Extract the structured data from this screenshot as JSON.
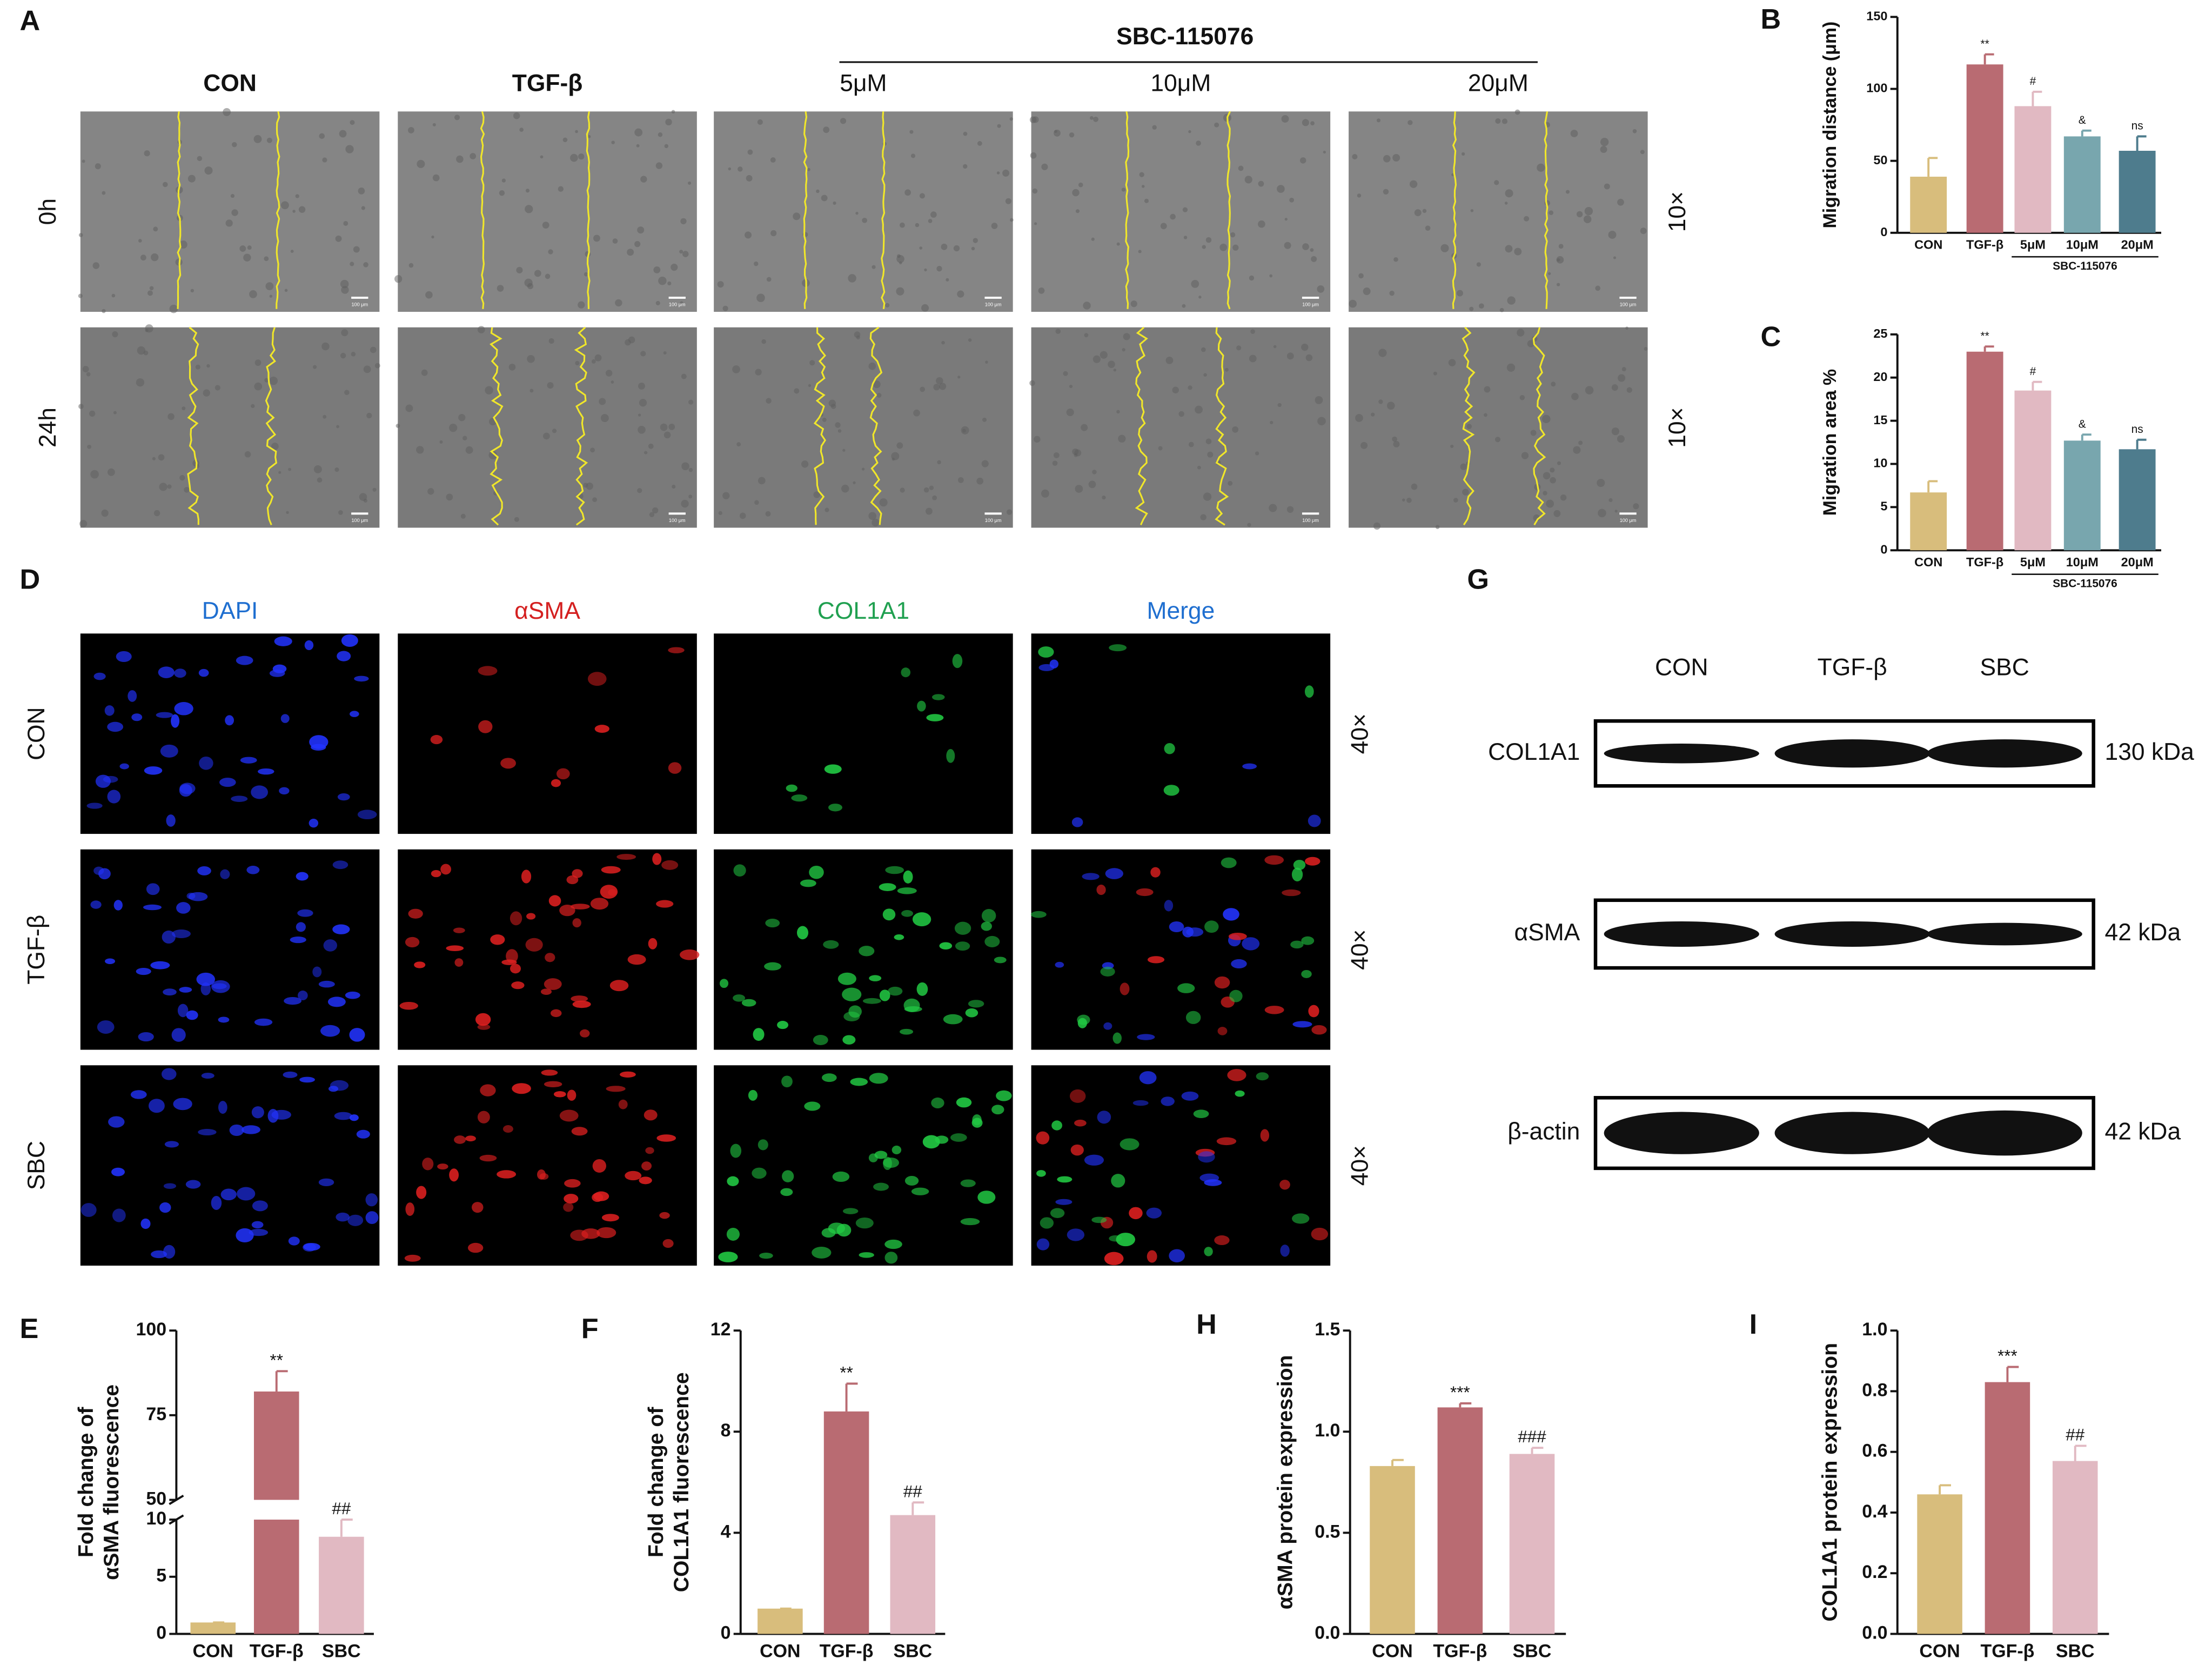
{
  "panel_a": {
    "label": "A",
    "columns": [
      "CON",
      "TGF-β",
      "5μM",
      "10μM",
      "20μM"
    ],
    "group": "SBC-115076",
    "rows": [
      "0h",
      "24h"
    ],
    "magnification": "10×",
    "scale": "100 μm"
  },
  "panel_d": {
    "label": "D",
    "columns": [
      "DAPI",
      "αSMA",
      "COL1A1",
      "Merge"
    ],
    "rows": [
      "CON",
      "TGF-β",
      "SBC"
    ],
    "magnification": "40×"
  },
  "panel_g": {
    "label": "G",
    "lanes": [
      "CON",
      "TGF-β",
      "SBC"
    ],
    "bands": [
      {
        "name": "COL1A1",
        "size": "130 kDa"
      },
      {
        "name": "αSMA",
        "size": "42 kDa"
      },
      {
        "name": "β-actin",
        "size": "42 kDa"
      }
    ]
  },
  "chart_data": [
    {
      "type": "bar",
      "panel": "B",
      "ylabel": [
        "Migration distance (μm)"
      ],
      "categories": [
        "CON",
        "TGF-β",
        "5μM",
        "10μM",
        "20μM"
      ],
      "group": "SBC-115076",
      "values": [
        39,
        117,
        88,
        67,
        57
      ],
      "errors": [
        13,
        7,
        10,
        4,
        10
      ],
      "significance": [
        null,
        "**",
        "#",
        "&",
        "ns"
      ],
      "colors": [
        "#d8bd7c",
        "#b96b72",
        "#e1b9c2",
        "#78a6ae",
        "#4e7c8d"
      ],
      "ylim": [
        0,
        150
      ],
      "yticks": [
        0,
        50,
        100,
        150
      ]
    },
    {
      "type": "bar",
      "panel": "C",
      "ylabel": [
        "Migration area %"
      ],
      "categories": [
        "CON",
        "TGF-β",
        "5μM",
        "10μM",
        "20μM"
      ],
      "group": "SBC-115076",
      "values": [
        6.7,
        23,
        18.5,
        12.7,
        11.7
      ],
      "errors": [
        1.3,
        0.6,
        1,
        0.7,
        1.1
      ],
      "significance": [
        null,
        "**",
        "#",
        "&",
        "ns"
      ],
      "colors": [
        "#d8bd7c",
        "#b96b72",
        "#e1b9c2",
        "#78a6ae",
        "#4e7c8d"
      ],
      "ylim": [
        0,
        25
      ],
      "yticks": [
        0,
        5,
        10,
        15,
        20,
        25
      ]
    },
    {
      "type": "bar",
      "panel": "E",
      "ylabel": [
        "Fold change of",
        "αSMA fluorescence"
      ],
      "categories": [
        "CON",
        "TGF-β",
        "SBC"
      ],
      "values": [
        1,
        82,
        8.5
      ],
      "errors": [
        0,
        6,
        1.5
      ],
      "significance": [
        null,
        "**",
        "##"
      ],
      "colors": [
        "#d8bd7c",
        "#b96b72",
        "#e1b9c2"
      ],
      "ylim": [
        0,
        100
      ],
      "axis_break": [
        10,
        50
      ],
      "yticks": [
        0,
        5,
        10,
        50,
        75,
        100
      ]
    },
    {
      "type": "bar",
      "panel": "F",
      "ylabel": [
        "Fold change of",
        "COL1A1 fluorescence"
      ],
      "categories": [
        "CON",
        "TGF-β",
        "SBC"
      ],
      "values": [
        1,
        8.8,
        4.7
      ],
      "errors": [
        0,
        1.1,
        0.5
      ],
      "significance": [
        null,
        "**",
        "##"
      ],
      "colors": [
        "#d8bd7c",
        "#b96b72",
        "#e1b9c2"
      ],
      "ylim": [
        0,
        12
      ],
      "yticks": [
        0,
        4,
        8,
        12
      ]
    },
    {
      "type": "bar",
      "panel": "H",
      "ylabel": [
        "αSMA protein expression"
      ],
      "categories": [
        "CON",
        "TGF-β",
        "SBC"
      ],
      "values": [
        0.83,
        1.12,
        0.89
      ],
      "errors": [
        0.03,
        0.02,
        0.03
      ],
      "significance": [
        null,
        "***",
        "###"
      ],
      "colors": [
        "#d8bd7c",
        "#b96b72",
        "#e1b9c2"
      ],
      "ylim": [
        0,
        1.5
      ],
      "yticks": [
        {
          "value": 0,
          "label": "0.0"
        },
        {
          "value": 0.5,
          "label": "0.5"
        },
        {
          "value": 1,
          "label": "1.0"
        },
        {
          "value": 1.5,
          "label": "1.5"
        }
      ]
    },
    {
      "type": "bar",
      "panel": "I",
      "ylabel": [
        "COL1A1 protein expression"
      ],
      "categories": [
        "CON",
        "TGF-β",
        "SBC"
      ],
      "values": [
        0.46,
        0.83,
        0.57
      ],
      "errors": [
        0.03,
        0.05,
        0.05
      ],
      "significance": [
        null,
        "***",
        "##"
      ],
      "colors": [
        "#d8bd7c",
        "#b96b72",
        "#e1b9c2"
      ],
      "ylim": [
        0,
        1
      ],
      "yticks": [
        {
          "value": 0,
          "label": "0.0"
        },
        {
          "value": 0.2,
          "label": "0.2"
        },
        {
          "value": 0.4,
          "label": "0.4"
        },
        {
          "value": 0.6,
          "label": "0.6"
        },
        {
          "value": 0.8,
          "label": "0.8"
        },
        {
          "value": 1,
          "label": "1.0"
        }
      ]
    }
  ]
}
